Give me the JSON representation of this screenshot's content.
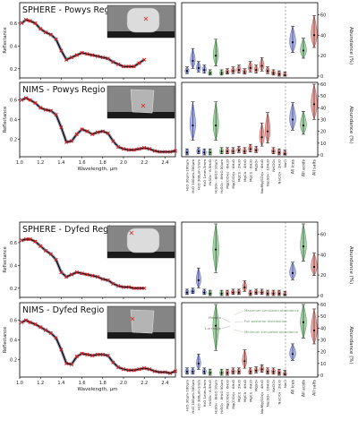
{
  "figure": {
    "spectrum_x_ticks": [
      "1.0",
      "1.2",
      "1.4",
      "1.6",
      "1.8",
      "2.0",
      "2.2",
      "2.4"
    ],
    "spectrum_y_ticks": [
      "0.2",
      "0.4",
      "0.6"
    ],
    "spectrum_ylabel": "Reflectance",
    "spectrum_xlabel": "Wavelength, µm",
    "abundance_ylabel": "Abundance (%)",
    "species": [
      "H₂O 30µm-100µm",
      "H₂O 100µm-300µm",
      "H₂O 300µm-1mm",
      "H₂O 1mm-3mm",
      "H₂SO₄ · 6.5H₂O",
      "H₂SO₄ · 8H₂O 10µm",
      "H₂SO₄ · 8H₂O 50µm",
      "Mg(ClO₄)₂ · 6H₂O",
      "Mg(ClO₃)₂ · 6H₂O",
      "MgCl₂ · 2H₂O",
      "MgCl₂ · 4H₂O",
      "MgCl₂ · 6H₂O",
      "MgSO₄",
      "Na₂Mg(SO₄)₂ · 4H₂O",
      "Na₂SO₄ · 10H₂O",
      "NaClO₄",
      "NaClO₄ · 2H₂O",
      "NaCl"
    ],
    "groups": [
      "All ices",
      "All acids",
      "All salts"
    ],
    "colors": {
      "ice": "#4a55c8",
      "acid": "#3f9a44",
      "salt": "#c8403a",
      "model": "#e3120b",
      "data": "#000000"
    }
  },
  "panels": [
    {
      "title": "SPHERE - Powys Regio"
    },
    {
      "title": "NIMS - Powys Regio"
    },
    {
      "title": "SPHERE - Dyfed Regio"
    },
    {
      "title": "NIMS - Dyfed Regio"
    }
  ],
  "legend": {
    "median": "Median",
    "range": "1-σ range",
    "max": "Maximum simulated abundance",
    "full": "Full posterior distribution",
    "min": "Minimum simulated abundance"
  },
  "chart_data": [
    {
      "type": "line",
      "title": "SPHERE - Powys Regio",
      "xlabel": "",
      "ylabel": "Reflectance",
      "xlim": [
        1.0,
        2.5
      ],
      "ylim": [
        0.1,
        0.8
      ],
      "spectrum_x": [
        1.02,
        1.06,
        1.1,
        1.15,
        1.2,
        1.25,
        1.3,
        1.35,
        1.4,
        1.45,
        1.5,
        1.55,
        1.6,
        1.65,
        1.7,
        1.75,
        1.8,
        1.85,
        1.9,
        1.95,
        2.0,
        2.05,
        2.1,
        2.15,
        2.2
      ],
      "spectrum_y": [
        0.6,
        0.63,
        0.62,
        0.6,
        0.55,
        0.52,
        0.5,
        0.46,
        0.36,
        0.28,
        0.3,
        0.32,
        0.34,
        0.33,
        0.32,
        0.31,
        0.3,
        0.29,
        0.26,
        0.24,
        0.22,
        0.22,
        0.22,
        0.25,
        0.28
      ]
    },
    {
      "type": "violin",
      "title": "SPHERE - Powys Regio",
      "ylabel": "Abundance (%)",
      "ylim": [
        0,
        70
      ],
      "series": [
        {
          "name": "species",
          "medians": [
            5,
            15,
            8,
            6,
            3,
            20,
            3,
            4,
            5,
            6,
            4,
            8,
            6,
            10,
            5,
            3,
            2,
            1
          ]
        },
        {
          "name": "groups",
          "medians": [
            33,
            25,
            40
          ]
        }
      ]
    },
    {
      "type": "line",
      "title": "NIMS - Powys Regio",
      "xlabel": "Wavelength, µm",
      "ylabel": "Reflectance",
      "xlim": [
        1.0,
        2.5
      ],
      "ylim": [
        0.0,
        0.8
      ],
      "spectrum_x": [
        1.02,
        1.06,
        1.1,
        1.15,
        1.2,
        1.25,
        1.3,
        1.35,
        1.4,
        1.45,
        1.5,
        1.55,
        1.6,
        1.65,
        1.7,
        1.75,
        1.8,
        1.85,
        1.9,
        1.95,
        2.0,
        2.05,
        2.1,
        2.15,
        2.2,
        2.25,
        2.3,
        2.35,
        2.4,
        2.45,
        2.5
      ],
      "spectrum_y": [
        0.6,
        0.62,
        0.6,
        0.57,
        0.52,
        0.5,
        0.49,
        0.45,
        0.32,
        0.17,
        0.18,
        0.25,
        0.3,
        0.28,
        0.25,
        0.27,
        0.28,
        0.26,
        0.18,
        0.12,
        0.1,
        0.09,
        0.09,
        0.1,
        0.11,
        0.1,
        0.08,
        0.07,
        0.07,
        0.07,
        0.08
      ]
    },
    {
      "type": "violin",
      "title": "NIMS - Powys Regio",
      "ylabel": "Abundance (%)",
      "ylim": [
        0,
        60
      ],
      "series": [
        {
          "name": "species",
          "medians": [
            2,
            25,
            3,
            2,
            2,
            25,
            3,
            3,
            3,
            4,
            3,
            5,
            4,
            15,
            20,
            3,
            2,
            1
          ]
        },
        {
          "name": "groups",
          "medians": [
            30,
            25,
            43
          ]
        }
      ]
    },
    {
      "type": "line",
      "title": "SPHERE - Dyfed Regio",
      "xlabel": "",
      "ylabel": "Reflectance",
      "xlim": [
        1.0,
        2.5
      ],
      "ylim": [
        0.1,
        0.8
      ],
      "spectrum_x": [
        1.02,
        1.06,
        1.1,
        1.15,
        1.2,
        1.25,
        1.3,
        1.35,
        1.4,
        1.45,
        1.5,
        1.55,
        1.6,
        1.65,
        1.7,
        1.75,
        1.8,
        1.85,
        1.9,
        1.95,
        2.0,
        2.05,
        2.1,
        2.15,
        2.2
      ],
      "spectrum_y": [
        0.62,
        0.63,
        0.63,
        0.61,
        0.57,
        0.53,
        0.5,
        0.45,
        0.34,
        0.3,
        0.32,
        0.34,
        0.33,
        0.32,
        0.31,
        0.3,
        0.28,
        0.27,
        0.24,
        0.22,
        0.21,
        0.21,
        0.2,
        0.2,
        0.2
      ]
    },
    {
      "type": "violin",
      "title": "SPHERE - Dyfed Regio",
      "ylabel": "Abundance (%)",
      "ylim": [
        0,
        70
      ],
      "series": [
        {
          "name": "species",
          "medians": [
            3,
            4,
            15,
            3,
            2,
            45,
            2,
            2,
            3,
            3,
            8,
            2,
            3,
            3,
            2,
            2,
            2,
            1
          ]
        },
        {
          "name": "groups",
          "medians": [
            22,
            48,
            28
          ]
        }
      ]
    },
    {
      "type": "line",
      "title": "NIMS - Dyfed Regio",
      "xlabel": "Wavelength, µm",
      "ylabel": "Reflectance",
      "xlim": [
        1.0,
        2.5
      ],
      "ylim": [
        0.0,
        0.8
      ],
      "spectrum_x": [
        1.02,
        1.06,
        1.1,
        1.15,
        1.2,
        1.25,
        1.3,
        1.35,
        1.4,
        1.45,
        1.5,
        1.55,
        1.6,
        1.65,
        1.7,
        1.75,
        1.8,
        1.85,
        1.9,
        1.95,
        2.0,
        2.05,
        2.1,
        2.15,
        2.2,
        2.25,
        2.3,
        2.35,
        2.4,
        2.45,
        2.5
      ],
      "spectrum_y": [
        0.58,
        0.6,
        0.58,
        0.56,
        0.53,
        0.5,
        0.47,
        0.42,
        0.3,
        0.16,
        0.15,
        0.23,
        0.26,
        0.25,
        0.24,
        0.25,
        0.25,
        0.24,
        0.17,
        0.12,
        0.1,
        0.09,
        0.09,
        0.1,
        0.11,
        0.1,
        0.08,
        0.07,
        0.07,
        0.06,
        0.08
      ]
    },
    {
      "type": "violin",
      "title": "NIMS - Dyfed Regio",
      "ylabel": "Abundance (%)",
      "ylim": [
        0,
        60
      ],
      "series": [
        {
          "name": "species",
          "medians": [
            3,
            3,
            10,
            3,
            2,
            42,
            2,
            2,
            3,
            3,
            12,
            3,
            4,
            5,
            3,
            3,
            2,
            1
          ]
        },
        {
          "name": "groups",
          "medians": [
            18,
            45,
            38
          ]
        }
      ]
    }
  ]
}
